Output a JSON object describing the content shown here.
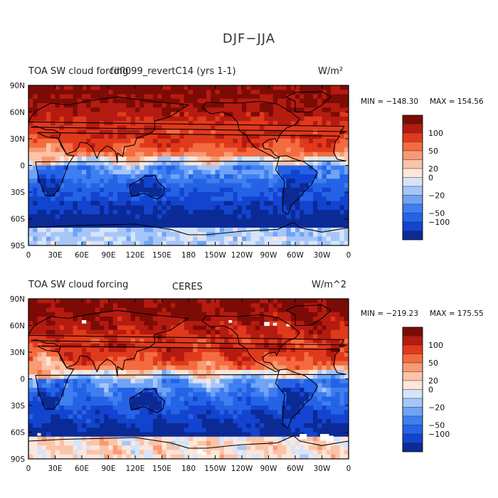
{
  "figure": {
    "title": "DJF−JJA"
  },
  "colors": {
    "levels": [
      "#0b2a96",
      "#1244cf",
      "#2563e6",
      "#3f7ef0",
      "#6fa3f5",
      "#a6c6f8",
      "#d6e4fb",
      "#fde6da",
      "#fbc3a8",
      "#f89a73",
      "#f46b3f",
      "#e0391c",
      "#b51b10",
      "#7c0b06"
    ],
    "land_outline": "#000000"
  },
  "chart_data": [
    {
      "type": "heatmap",
      "title": "TOA SW cloud forcing",
      "subtitle": "fdfl099_revertC14 (yrs 1-1)",
      "units": "W/m²",
      "min_text": "MIN = −148.30",
      "max_text": "MAX = 154.56",
      "min": -148.3,
      "max": 154.56,
      "x_ticks": [
        "0",
        "30E",
        "60E",
        "90E",
        "120E",
        "150E",
        "180",
        "150W",
        "120W",
        "90W",
        "60W",
        "30W",
        "0"
      ],
      "y_ticks": [
        "90N",
        "60N",
        "30N",
        "0",
        "30S",
        "60S",
        "90S"
      ],
      "legend_ticks": [
        "100",
        "50",
        "20",
        "0",
        "−20",
        "−50",
        "−100"
      ],
      "variant": "model"
    },
    {
      "type": "heatmap",
      "title": "TOA SW cloud forcing",
      "subtitle": "CERES",
      "units": "W/m^2",
      "min_text": "MIN = −219.23",
      "max_text": "MAX = 175.55",
      "min": -219.23,
      "max": 175.55,
      "x_ticks": [
        "0",
        "30E",
        "60E",
        "90E",
        "120E",
        "150E",
        "180",
        "150W",
        "120W",
        "90W",
        "60W",
        "30W",
        "0"
      ],
      "y_ticks": [
        "90N",
        "60N",
        "30N",
        "0",
        "30S",
        "60S",
        "90S"
      ],
      "legend_ticks": [
        "100",
        "50",
        "20",
        "0",
        "−20",
        "−50",
        "−100"
      ],
      "variant": "obs"
    }
  ]
}
